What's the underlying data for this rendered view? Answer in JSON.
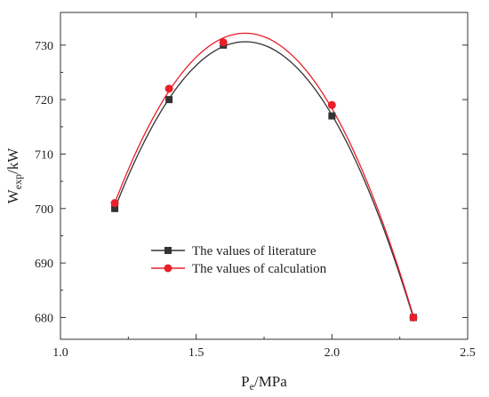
{
  "chart_data": {
    "type": "line",
    "title": "",
    "xlabel": {
      "main": "P",
      "sub": "e",
      "rest": "/MPa"
    },
    "ylabel": {
      "main": "W",
      "sub": "exp",
      "rest": "/kW"
    },
    "xlim": [
      1.0,
      2.5
    ],
    "ylim": [
      676,
      736
    ],
    "xticks": [
      1.0,
      1.5,
      2.0,
      2.5
    ],
    "xtick_labels": [
      "1.0",
      "1.5",
      "2.0",
      "2.5"
    ],
    "yticks": [
      680,
      690,
      700,
      710,
      720,
      730
    ],
    "ytick_labels": [
      "680",
      "690",
      "700",
      "710",
      "720",
      "730"
    ],
    "grid": false,
    "legend_position": "lower-center",
    "series": [
      {
        "name": "The values of literature",
        "color": "#333333",
        "marker": "square",
        "x": [
          1.2,
          1.4,
          1.6,
          2.0,
          2.3
        ],
        "y": [
          700,
          720,
          730,
          717,
          680
        ]
      },
      {
        "name": "The values of calculation",
        "color": "#e8202a",
        "marker": "circle",
        "x": [
          1.2,
          1.4,
          1.6,
          2.0,
          2.3
        ],
        "y": [
          701,
          722,
          730.5,
          719,
          680
        ]
      }
    ]
  }
}
